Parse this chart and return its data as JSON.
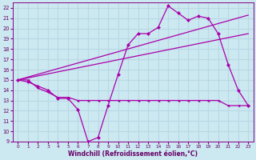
{
  "xlabel": "Windchill (Refroidissement éolien,°C)",
  "background_color": "#cce8f0",
  "grid_color": "#b8d8e4",
  "line_color": "#aa00aa",
  "xlim": [
    -0.5,
    23.5
  ],
  "ylim": [
    9,
    22.5
  ],
  "xticks": [
    0,
    1,
    2,
    3,
    4,
    5,
    6,
    7,
    8,
    9,
    10,
    11,
    12,
    13,
    14,
    15,
    16,
    17,
    18,
    19,
    20,
    21,
    22,
    23
  ],
  "yticks": [
    9,
    10,
    11,
    12,
    13,
    14,
    15,
    16,
    17,
    18,
    19,
    20,
    21,
    22
  ],
  "series_wavy_x": [
    0,
    1,
    2,
    3,
    4,
    5,
    6,
    7,
    8,
    9,
    10,
    11,
    12,
    13,
    14,
    15,
    16,
    17,
    18,
    19,
    20,
    21,
    22,
    23
  ],
  "series_wavy_y": [
    15,
    14.8,
    14.4,
    14.0,
    13.2,
    13.2,
    12.1,
    9.0,
    9.4,
    12.5,
    15.5,
    18.4,
    19.5,
    19.5,
    20.1,
    22.2,
    21.5,
    20.8,
    21.2,
    21.0,
    19.5,
    16.5,
    14.0,
    12.5
  ],
  "series_flat_x": [
    0,
    1,
    2,
    3,
    4,
    5,
    6,
    7,
    8,
    9,
    10,
    11,
    12,
    13,
    14,
    15,
    16,
    17,
    18,
    19,
    20,
    21,
    22,
    23
  ],
  "series_flat_y": [
    15.0,
    15.0,
    14.2,
    13.8,
    13.3,
    13.3,
    13.0,
    13.0,
    13.0,
    13.0,
    13.0,
    13.0,
    13.0,
    13.0,
    13.0,
    13.0,
    13.0,
    13.0,
    13.0,
    13.0,
    13.0,
    12.5,
    12.5,
    12.5
  ],
  "trend1_x": [
    0,
    23
  ],
  "trend1_y": [
    15.0,
    21.3
  ],
  "trend2_x": [
    0,
    23
  ],
  "trend2_y": [
    15.0,
    19.5
  ]
}
